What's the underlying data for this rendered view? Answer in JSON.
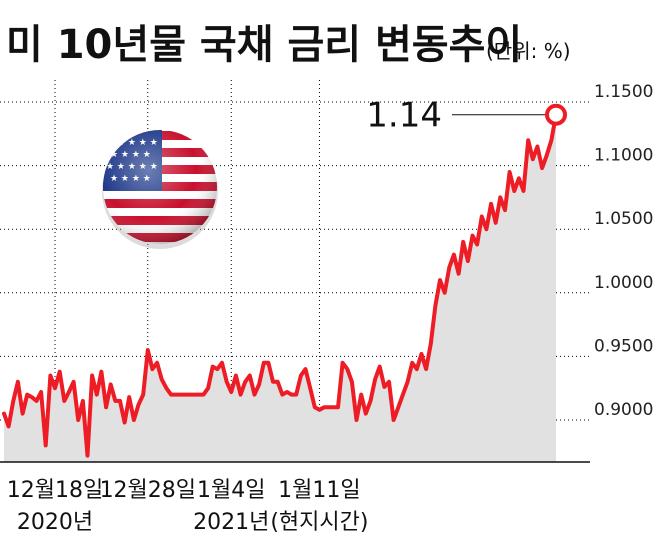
{
  "chart_data": {
    "type": "line",
    "title": "미 10년물 국채 금리 변동추이",
    "unit_note": "(단위: %)",
    "ylim": [
      0.88,
      1.16
    ],
    "y_ticks": [
      "1.1500",
      "1.1000",
      "1.0500",
      "1.0000",
      "0.9500",
      "0.9000"
    ],
    "y_tick_values": [
      1.15,
      1.1,
      1.05,
      1.0,
      0.95,
      0.9
    ],
    "x_ticks": [
      {
        "label": "12월18일",
        "sub": "2020년",
        "index": 11
      },
      {
        "label": "12월28일",
        "sub": "",
        "index": 31
      },
      {
        "label": "1월4일",
        "sub": "2021년",
        "index": 49
      },
      {
        "label": "1월11일",
        "sub": "(현지시간)",
        "index": 68
      }
    ],
    "grid": true,
    "area_fill": true,
    "last_value_label": "1.14",
    "series": [
      {
        "values": [
          0.905,
          0.895,
          0.915,
          0.93,
          0.905,
          0.92,
          0.918,
          0.915,
          0.922,
          0.88,
          0.935,
          0.925,
          0.938,
          0.915,
          0.922,
          0.93,
          0.9,
          0.915,
          0.872,
          0.935,
          0.92,
          0.938,
          0.91,
          0.928,
          0.915,
          0.915,
          0.898,
          0.918,
          0.9,
          0.912,
          0.92,
          0.955,
          0.94,
          0.945,
          0.932,
          0.925,
          0.92,
          0.92,
          0.92,
          0.92,
          0.92,
          0.92,
          0.92,
          0.92,
          0.925,
          0.942,
          0.94,
          0.945,
          0.93,
          0.922,
          0.935,
          0.92,
          0.93,
          0.935,
          0.92,
          0.928,
          0.945,
          0.945,
          0.93,
          0.93,
          0.92,
          0.922,
          0.92,
          0.92,
          0.935,
          0.94,
          0.925,
          0.91,
          0.908,
          0.91,
          0.91,
          0.91,
          0.91,
          0.945,
          0.94,
          0.93,
          0.9,
          0.92,
          0.905,
          0.915,
          0.932,
          0.942,
          0.926,
          0.93,
          0.9,
          0.91,
          0.92,
          0.93,
          0.945,
          0.94,
          0.952,
          0.94,
          0.96,
          0.99,
          1.01,
          1.0,
          1.02,
          1.03,
          1.015,
          1.04,
          1.025,
          1.045,
          1.038,
          1.06,
          1.05,
          1.07,
          1.055,
          1.075,
          1.065,
          1.095,
          1.08,
          1.09,
          1.08,
          1.12,
          1.105,
          1.115,
          1.098,
          1.108,
          1.12,
          1.14
        ]
      }
    ]
  },
  "icons": {
    "flag": "usa-flag-globe-icon"
  },
  "colors": {
    "line": "#ee1c24",
    "area": "#e1e1e1",
    "grid": "#000000",
    "text": "#111111"
  }
}
